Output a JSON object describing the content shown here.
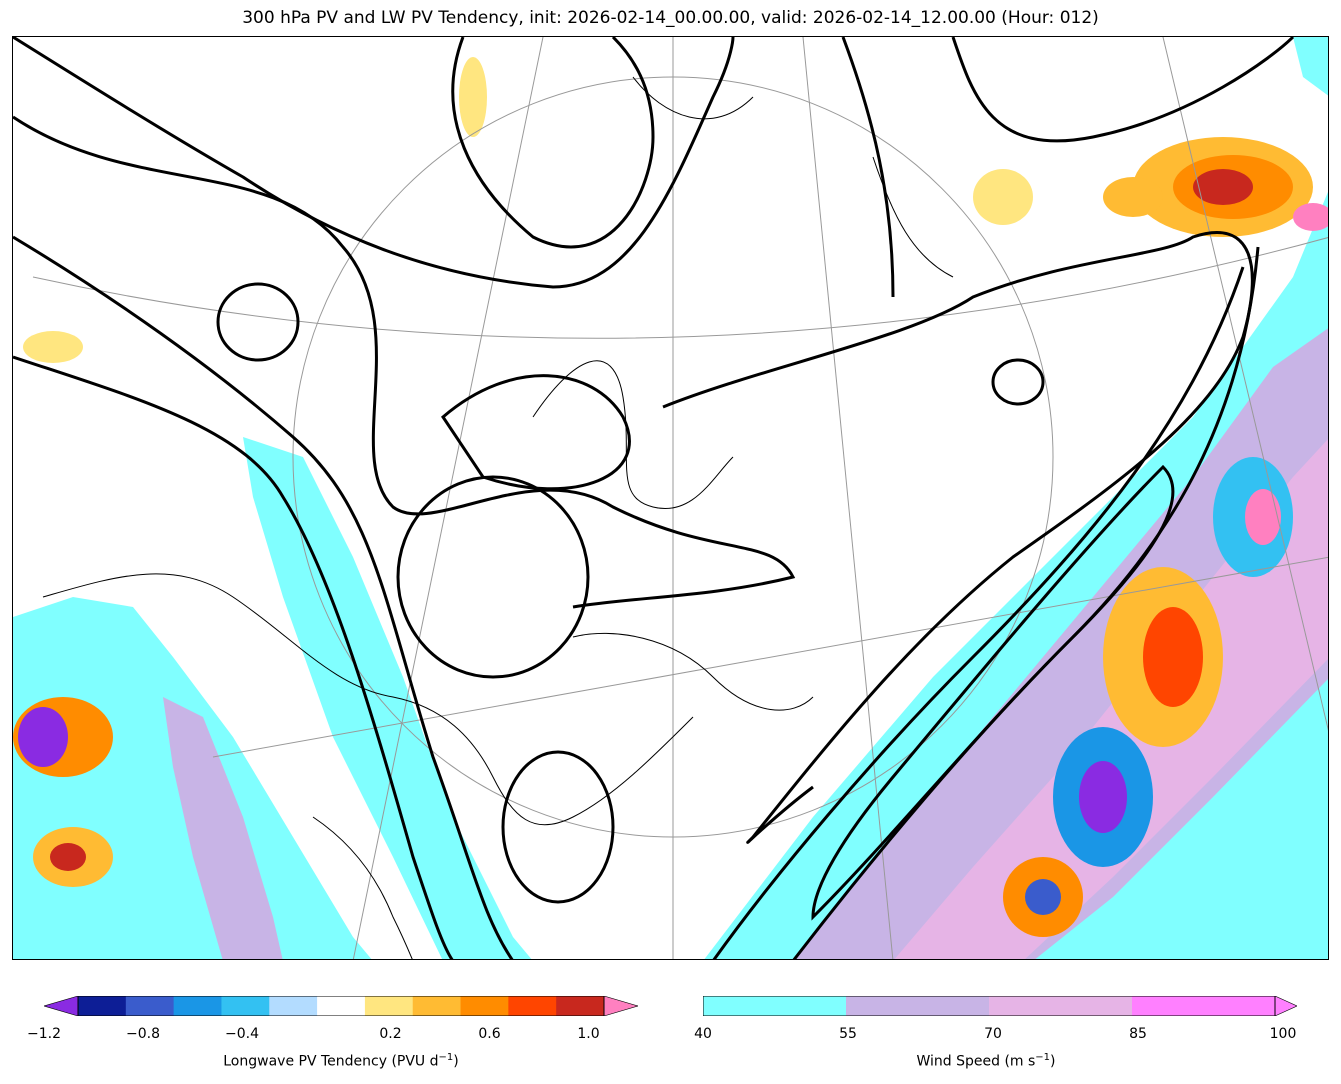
{
  "title": "300 hPa PV and LW PV Tendency, init: 2026-02-14_00.00.00, valid: 2026-02-14_12.00.00 (Hour: 012)",
  "colorbars": {
    "pv_tendency": {
      "label_text": "Longwave PV Tendency (PVU d",
      "label_sup": "−1",
      "label_close": ")",
      "min": -1.2,
      "max": 1.2,
      "step": 0.2,
      "ticks": [
        "−1.2",
        "−0.8",
        "−0.4",
        "0.2",
        "0.6",
        "1.0"
      ],
      "tick_values": [
        -1.2,
        -0.8,
        -0.4,
        0.2,
        0.6,
        1.0
      ],
      "colors": [
        "#8a2be2",
        "#0d1e96",
        "#3a5ccc",
        "#1a96e6",
        "#33c1f2",
        "#b3dcff",
        "#ffffff",
        "#ffe680",
        "#ffbb33",
        "#ff8c00",
        "#ff4500",
        "#c8281e",
        "#ff80c0"
      ]
    },
    "wind_speed": {
      "label_text": "Wind Speed (m s",
      "label_sup": "−1",
      "label_close": ")",
      "min": 40,
      "max": 100,
      "ticks": [
        "40",
        "55",
        "70",
        "85",
        "100"
      ],
      "tick_values": [
        40,
        55,
        70,
        85,
        100
      ],
      "colors": [
        "#80ffff",
        "#c8b4e6",
        "#e6b4e6",
        "#ff80ff"
      ]
    }
  }
}
